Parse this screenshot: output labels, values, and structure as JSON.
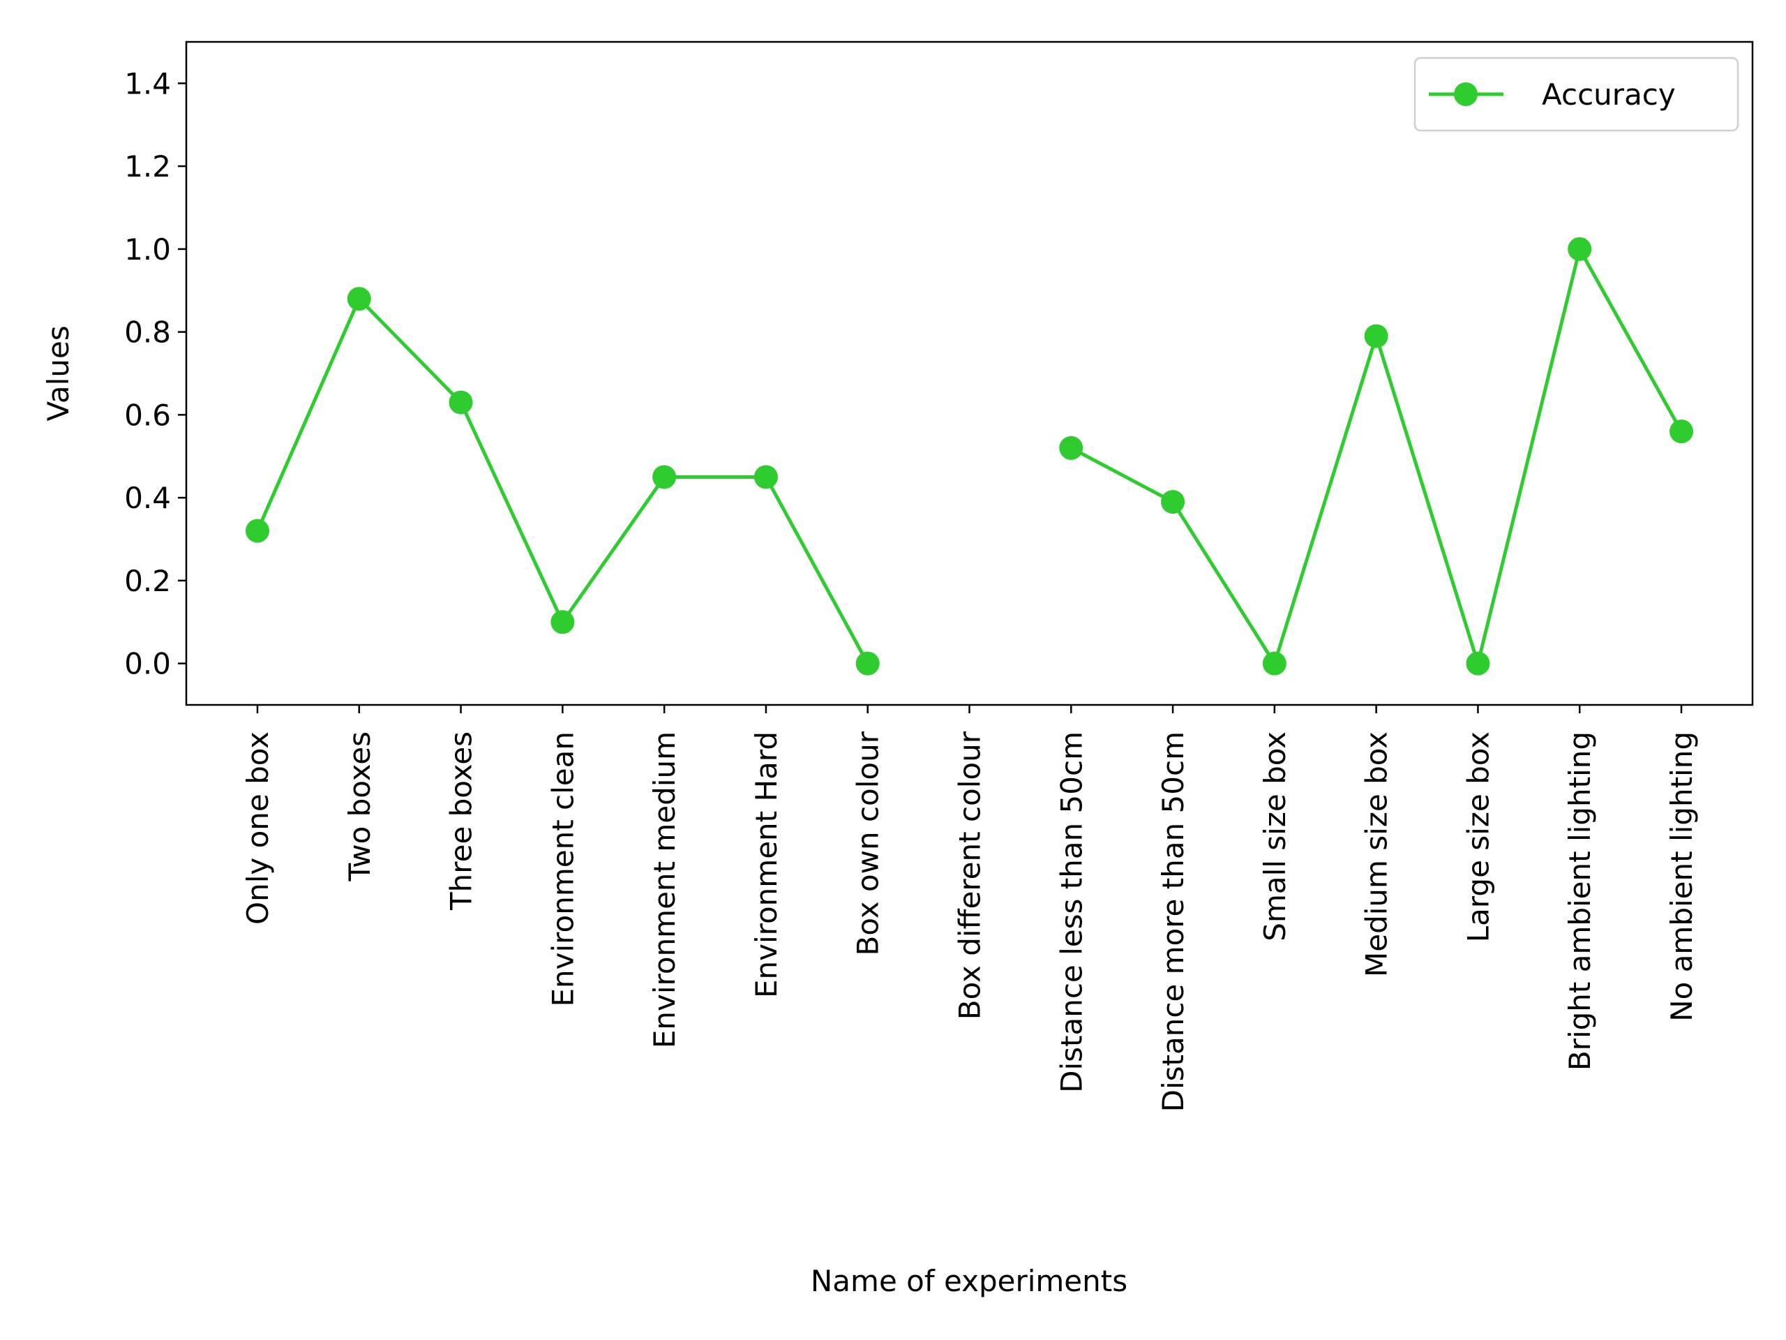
{
  "chart_data": {
    "type": "line",
    "xlabel": "Name of experiments",
    "ylabel": "Values",
    "ylim": [
      -0.1,
      1.5
    ],
    "yticks": [
      0.0,
      0.2,
      0.4,
      0.6,
      0.8,
      1.0,
      1.2,
      1.4
    ],
    "ytick_labels": [
      "0.0",
      "0.2",
      "0.4",
      "0.6",
      "0.8",
      "1.0",
      "1.2",
      "1.4"
    ],
    "categories": [
      "Only one box",
      "Two boxes",
      "Three boxes",
      "Environment clean",
      "Environment medium",
      "Environment Hard",
      "Box own colour",
      "Box different colour",
      "Distance less than 50cm",
      "Distance more than 50cm",
      "Small size box",
      "Medium size box",
      "Large size box",
      "Bright ambient lighting",
      "No  ambient lighting"
    ],
    "series": [
      {
        "name": "Accuracy",
        "color": "#2ecc2e",
        "marker": "circle",
        "values": [
          0.32,
          0.88,
          0.63,
          0.1,
          0.45,
          0.45,
          0.0,
          null,
          0.52,
          0.39,
          0.0,
          0.79,
          0.0,
          1.0,
          0.56
        ]
      }
    ],
    "grid": false,
    "legend_position": "top-right"
  }
}
